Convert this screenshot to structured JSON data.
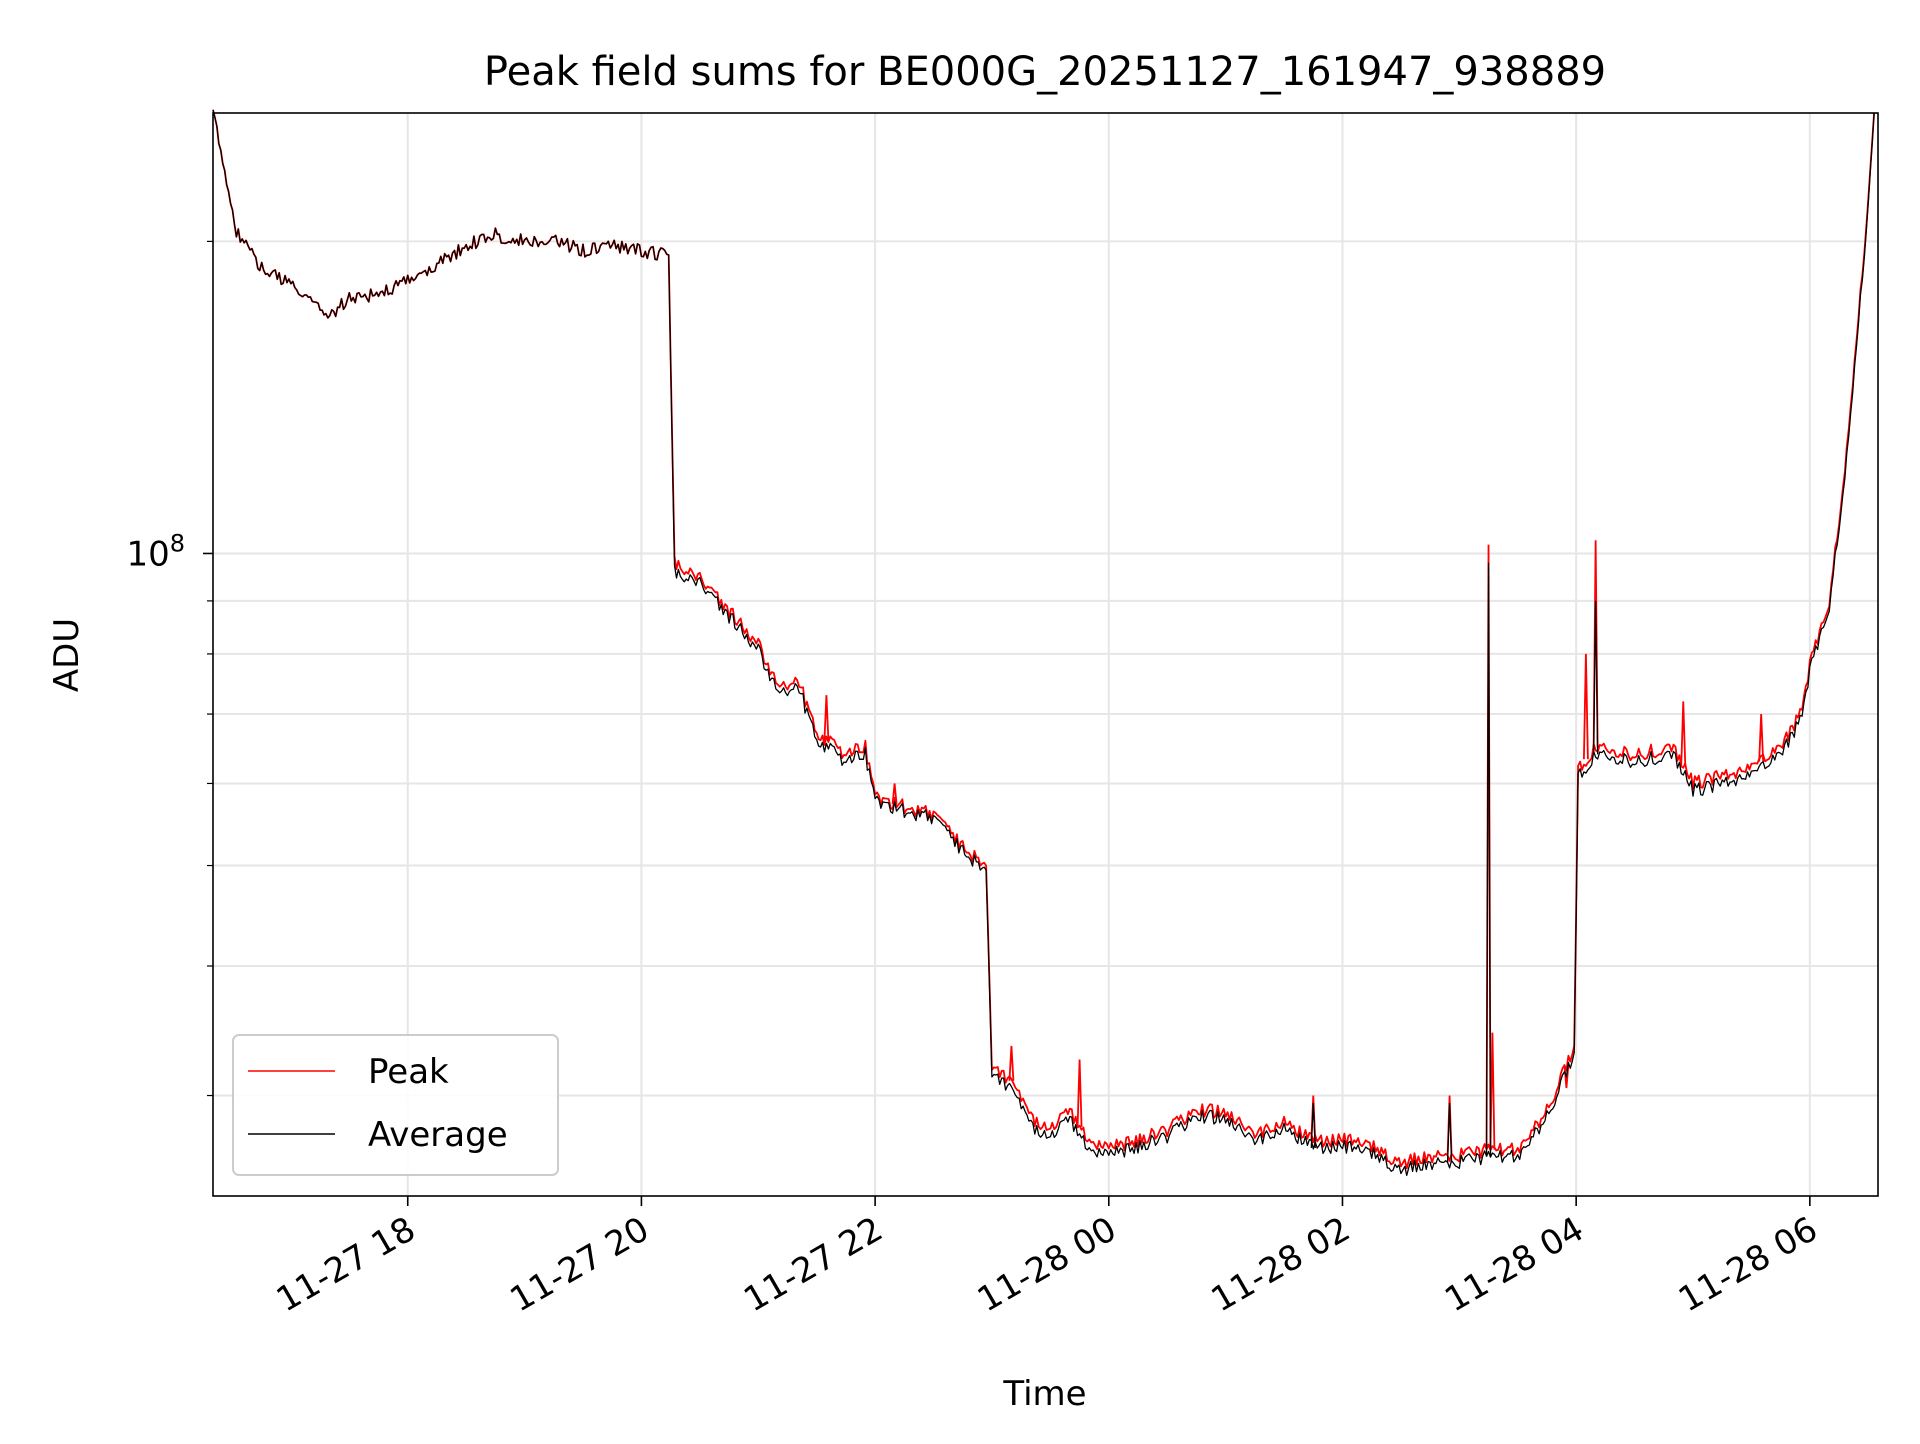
{
  "chart_data": {
    "type": "line",
    "title": "Peak field sums for BE000G_20251127_161947_938889",
    "xlabel": "Time",
    "ylabel": "ADU",
    "y_scale": "log",
    "ylim": [
      24000000,
      266000000
    ],
    "xlim": [
      "2025-11-27 16:20",
      "2025-11-28 06:35"
    ],
    "x_ticks": [
      {
        "t": "2025-11-27 18:00",
        "label": "11-27 18"
      },
      {
        "t": "2025-11-27 20:00",
        "label": "11-27 20"
      },
      {
        "t": "2025-11-27 22:00",
        "label": "11-27 22"
      },
      {
        "t": "2025-11-28 00:00",
        "label": "11-28 00"
      },
      {
        "t": "2025-11-28 02:00",
        "label": "11-28 02"
      },
      {
        "t": "2025-11-28 04:00",
        "label": "11-28 04"
      },
      {
        "t": "2025-11-28 06:00",
        "label": "11-28 06"
      }
    ],
    "y_major_ticks": [
      {
        "value": 100000000,
        "label_base": "10",
        "label_exp": "8"
      }
    ],
    "y_minor_ticks": [
      30000000,
      40000000,
      50000000,
      60000000,
      70000000,
      80000000,
      90000000,
      200000000
    ],
    "grid": true,
    "legend_position": "lower-left",
    "series": [
      {
        "name": "Peak",
        "color": "#ff0000",
        "points": [
          [
            "2025-11-27 16:20",
            266000000
          ],
          [
            "2025-11-27 16:25",
            240000000
          ],
          [
            "2025-11-27 16:32",
            205000000
          ],
          [
            "2025-11-27 16:45",
            188000000
          ],
          [
            "2025-11-27 17:00",
            182000000
          ],
          [
            "2025-11-27 17:15",
            172000000
          ],
          [
            "2025-11-27 17:20",
            170000000
          ],
          [
            "2025-11-27 17:30",
            176000000
          ],
          [
            "2025-11-27 17:45",
            178000000
          ],
          [
            "2025-11-27 18:00",
            183000000
          ],
          [
            "2025-11-27 18:15",
            190000000
          ],
          [
            "2025-11-27 18:30",
            198000000
          ],
          [
            "2025-11-27 18:45",
            203000000
          ],
          [
            "2025-11-27 19:00",
            200000000
          ],
          [
            "2025-11-27 19:15",
            200000000
          ],
          [
            "2025-11-27 19:30",
            196000000
          ],
          [
            "2025-11-27 19:45",
            198000000
          ],
          [
            "2025-11-27 20:00",
            196000000
          ],
          [
            "2025-11-27 20:14",
            194000000
          ],
          [
            "2025-11-27 20:17",
            98000000
          ],
          [
            "2025-11-27 20:30",
            95000000
          ],
          [
            "2025-11-27 20:45",
            88000000
          ],
          [
            "2025-11-27 21:00",
            82000000
          ],
          [
            "2025-11-27 21:10",
            74000000
          ],
          [
            "2025-11-27 21:20",
            76000000
          ],
          [
            "2025-11-27 21:30",
            67000000
          ],
          [
            "2025-11-27 21:45",
            64000000
          ],
          [
            "2025-11-27 21:55",
            65000000
          ],
          [
            "2025-11-27 22:00",
            58000000
          ],
          [
            "2025-11-27 22:15",
            57000000
          ],
          [
            "2025-11-27 22:30",
            56000000
          ],
          [
            "2025-11-27 22:45",
            52000000
          ],
          [
            "2025-11-27 22:57",
            50000000
          ],
          [
            "2025-11-27 23:00",
            32000000
          ],
          [
            "2025-11-27 23:10",
            31000000
          ],
          [
            "2025-11-27 23:20",
            28500000
          ],
          [
            "2025-11-27 23:30",
            28000000
          ],
          [
            "2025-11-27 23:40",
            29000000
          ],
          [
            "2025-11-27 23:50",
            27000000
          ],
          [
            "2025-11-28 00:00",
            26700000
          ],
          [
            "2025-11-28 00:15",
            27200000
          ],
          [
            "2025-11-28 00:30",
            27800000
          ],
          [
            "2025-11-28 00:45",
            29000000
          ],
          [
            "2025-11-28 01:00",
            29000000
          ],
          [
            "2025-11-28 01:15",
            27500000
          ],
          [
            "2025-11-28 01:30",
            28200000
          ],
          [
            "2025-11-28 01:45",
            27100000
          ],
          [
            "2025-11-28 02:00",
            27200000
          ],
          [
            "2025-11-28 02:15",
            26800000
          ],
          [
            "2025-11-28 02:30",
            25800000
          ],
          [
            "2025-11-28 02:45",
            26200000
          ],
          [
            "2025-11-28 03:00",
            26300000
          ],
          [
            "2025-11-28 03:15",
            26600000
          ],
          [
            "2025-11-28 03:30",
            26600000
          ],
          [
            "2025-11-28 03:45",
            29000000
          ],
          [
            "2025-11-28 03:59",
            33500000
          ],
          [
            "2025-11-28 04:01",
            62000000
          ],
          [
            "2025-11-28 04:10",
            65000000
          ],
          [
            "2025-11-28 04:30",
            64000000
          ],
          [
            "2025-11-28 04:50",
            65000000
          ],
          [
            "2025-11-28 05:00",
            60000000
          ],
          [
            "2025-11-28 05:15",
            61000000
          ],
          [
            "2025-11-28 05:30",
            62000000
          ],
          [
            "2025-11-28 05:45",
            65000000
          ],
          [
            "2025-11-28 05:55",
            70000000
          ],
          [
            "2025-11-28 06:00",
            78000000
          ],
          [
            "2025-11-28 06:10",
            90000000
          ],
          [
            "2025-11-28 06:20",
            130000000
          ],
          [
            "2025-11-28 06:30",
            220000000
          ],
          [
            "2025-11-28 06:33",
            266000000
          ]
        ],
        "spikes": [
          [
            "2025-11-27 21:35",
            73000000
          ],
          [
            "2025-11-27 22:10",
            60000000
          ],
          [
            "2025-11-27 23:10",
            33500000
          ],
          [
            "2025-11-27 23:45",
            32500000
          ],
          [
            "2025-11-28 01:45",
            30000000
          ],
          [
            "2025-11-28 02:55",
            30000000
          ],
          [
            "2025-11-28 03:15",
            102000000
          ],
          [
            "2025-11-28 03:17",
            34500000
          ],
          [
            "2025-11-28 04:10",
            103000000
          ],
          [
            "2025-11-28 04:05",
            80000000
          ],
          [
            "2025-11-28 04:55",
            72000000
          ],
          [
            "2025-11-28 05:35",
            70000000
          ],
          [
            "2025-11-28 03:55",
            30500000
          ]
        ]
      },
      {
        "name": "Average",
        "color": "#000000",
        "points": [
          [
            "2025-11-27 16:20",
            266000000
          ],
          [
            "2025-11-27 16:25",
            240000000
          ],
          [
            "2025-11-27 16:32",
            205000000
          ],
          [
            "2025-11-27 16:45",
            188000000
          ],
          [
            "2025-11-27 17:00",
            182000000
          ],
          [
            "2025-11-27 17:15",
            172000000
          ],
          [
            "2025-11-27 17:20",
            170000000
          ],
          [
            "2025-11-27 17:30",
            176000000
          ],
          [
            "2025-11-27 17:45",
            178000000
          ],
          [
            "2025-11-27 18:00",
            183000000
          ],
          [
            "2025-11-27 18:15",
            190000000
          ],
          [
            "2025-11-27 18:30",
            198000000
          ],
          [
            "2025-11-27 18:45",
            203000000
          ],
          [
            "2025-11-27 19:00",
            200000000
          ],
          [
            "2025-11-27 19:15",
            200000000
          ],
          [
            "2025-11-27 19:30",
            196000000
          ],
          [
            "2025-11-27 19:45",
            198000000
          ],
          [
            "2025-11-27 20:00",
            196000000
          ],
          [
            "2025-11-27 20:14",
            194000000
          ],
          [
            "2025-11-27 20:17",
            96000000
          ],
          [
            "2025-11-27 20:30",
            94000000
          ],
          [
            "2025-11-27 20:45",
            87000000
          ],
          [
            "2025-11-27 21:00",
            81000000
          ],
          [
            "2025-11-27 21:10",
            73000000
          ],
          [
            "2025-11-27 21:20",
            75000000
          ],
          [
            "2025-11-27 21:30",
            66000000
          ],
          [
            "2025-11-27 21:45",
            63000000
          ],
          [
            "2025-11-27 21:55",
            64000000
          ],
          [
            "2025-11-27 22:00",
            57500000
          ],
          [
            "2025-11-27 22:15",
            56500000
          ],
          [
            "2025-11-27 22:30",
            55500000
          ],
          [
            "2025-11-27 22:45",
            51500000
          ],
          [
            "2025-11-27 22:57",
            49500000
          ],
          [
            "2025-11-27 23:00",
            31500000
          ],
          [
            "2025-11-27 23:10",
            30500000
          ],
          [
            "2025-11-27 23:20",
            28000000
          ],
          [
            "2025-11-27 23:30",
            27500000
          ],
          [
            "2025-11-27 23:40",
            28500000
          ],
          [
            "2025-11-27 23:50",
            26500000
          ],
          [
            "2025-11-28 00:00",
            26300000
          ],
          [
            "2025-11-28 00:15",
            26800000
          ],
          [
            "2025-11-28 00:30",
            27400000
          ],
          [
            "2025-11-28 00:45",
            28600000
          ],
          [
            "2025-11-28 01:00",
            28600000
          ],
          [
            "2025-11-28 01:15",
            27100000
          ],
          [
            "2025-11-28 01:30",
            27800000
          ],
          [
            "2025-11-28 01:45",
            26700000
          ],
          [
            "2025-11-28 02:00",
            26800000
          ],
          [
            "2025-11-28 02:15",
            26400000
          ],
          [
            "2025-11-28 02:30",
            25400000
          ],
          [
            "2025-11-28 02:45",
            25800000
          ],
          [
            "2025-11-28 03:00",
            25900000
          ],
          [
            "2025-11-28 03:15",
            26200000
          ],
          [
            "2025-11-28 03:30",
            26200000
          ],
          [
            "2025-11-28 03:45",
            28600000
          ],
          [
            "2025-11-28 03:59",
            33000000
          ],
          [
            "2025-11-28 04:01",
            61000000
          ],
          [
            "2025-11-28 04:10",
            64000000
          ],
          [
            "2025-11-28 04:30",
            63000000
          ],
          [
            "2025-11-28 04:50",
            64000000
          ],
          [
            "2025-11-28 05:00",
            59000000
          ],
          [
            "2025-11-28 05:15",
            60000000
          ],
          [
            "2025-11-28 05:30",
            61000000
          ],
          [
            "2025-11-28 05:45",
            64000000
          ],
          [
            "2025-11-28 05:55",
            69000000
          ],
          [
            "2025-11-28 06:00",
            77000000
          ],
          [
            "2025-11-28 06:10",
            89000000
          ],
          [
            "2025-11-28 06:20",
            128000000
          ],
          [
            "2025-11-28 06:30",
            218000000
          ],
          [
            "2025-11-28 06:33",
            266000000
          ]
        ],
        "spikes": [
          [
            "2025-11-28 03:15",
            98000000
          ],
          [
            "2025-11-28 04:10",
            90000000
          ],
          [
            "2025-11-28 02:55",
            29500000
          ],
          [
            "2025-11-28 01:45",
            29500000
          ]
        ]
      }
    ]
  }
}
